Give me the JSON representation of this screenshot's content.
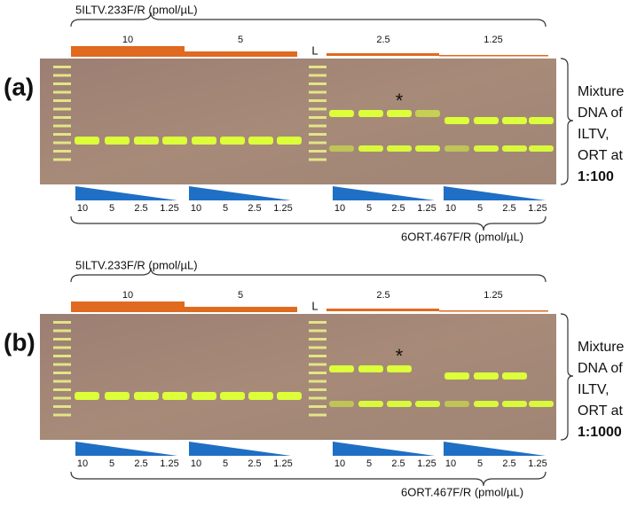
{
  "panels": [
    {
      "label": "(a)",
      "top_primer": "5ILTV.233F/R (pmol/µL)",
      "top_concentrations": [
        "10",
        "5",
        "2.5",
        "1.25"
      ],
      "ladder": "L",
      "asterisk": "*",
      "side_text": [
        "Mixture",
        "DNA of",
        "ILTV,",
        "ORT at"
      ],
      "ratio": "1:100",
      "bottom_concentrations": [
        [
          "10",
          "5",
          "2.5",
          "1.25"
        ],
        [
          "10",
          "5",
          "2.5",
          "1.25"
        ],
        [
          "10",
          "5",
          "2.5",
          "1.25"
        ],
        [
          "10",
          "5",
          "2.5",
          "1.25"
        ]
      ],
      "bottom_primer": "6ORT.467F/R (pmol/µL)"
    },
    {
      "label": "(b)",
      "top_primer": "5ILTV.233F/R (pmol/µL)",
      "top_concentrations": [
        "10",
        "5",
        "2.5",
        "1.25"
      ],
      "ladder": "L",
      "asterisk": "*",
      "side_text": [
        "Mixture",
        "DNA of",
        "ILTV,",
        "ORT at"
      ],
      "ratio": "1:1000",
      "bottom_concentrations": [
        [
          "10",
          "5",
          "2.5",
          "1.25"
        ],
        [
          "10",
          "5",
          "2.5",
          "1.25"
        ],
        [
          "10",
          "5",
          "2.5",
          "1.25"
        ],
        [
          "10",
          "5",
          "2.5",
          "1.25"
        ]
      ],
      "bottom_primer": "6ORT.467F/R (pmol/µL)"
    }
  ]
}
